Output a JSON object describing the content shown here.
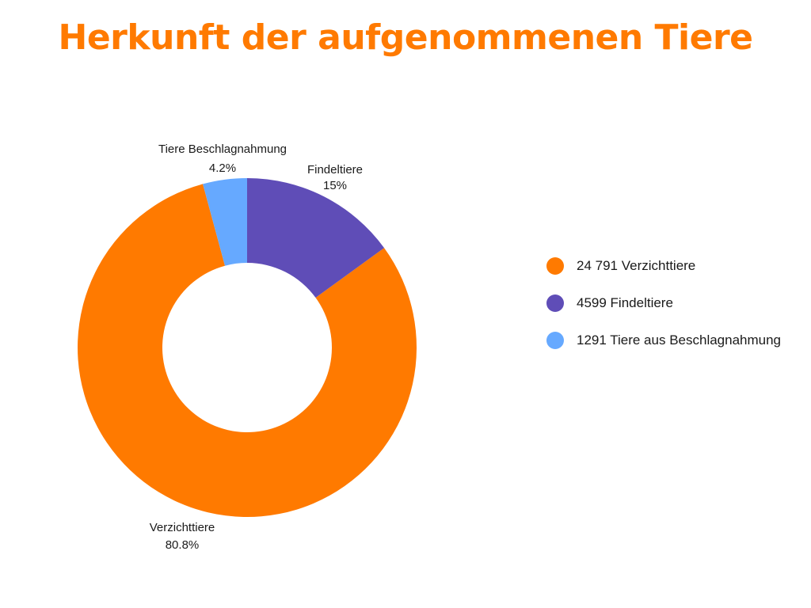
{
  "chart_data": {
    "type": "pie",
    "donut": true,
    "title": "Herkunft der aufgenommenen Tiere",
    "slices": [
      {
        "label": "Verzichttiere",
        "percent_label": "80.8%",
        "value": 24791,
        "legend": "24 791 Verzichttiere",
        "color": "#ff7a00"
      },
      {
        "label": "Findeltiere",
        "percent_label": "15%",
        "value": 4599,
        "legend": "4599 Findeltiere",
        "color": "#5f4db7"
      },
      {
        "label": "Tiere Beschlagnahmung",
        "percent_label": "4.2%",
        "value": 1291,
        "legend": "1291 Tiere aus Beschlagnahmung",
        "color": "#66a9ff"
      }
    ],
    "legend_position": "right"
  }
}
